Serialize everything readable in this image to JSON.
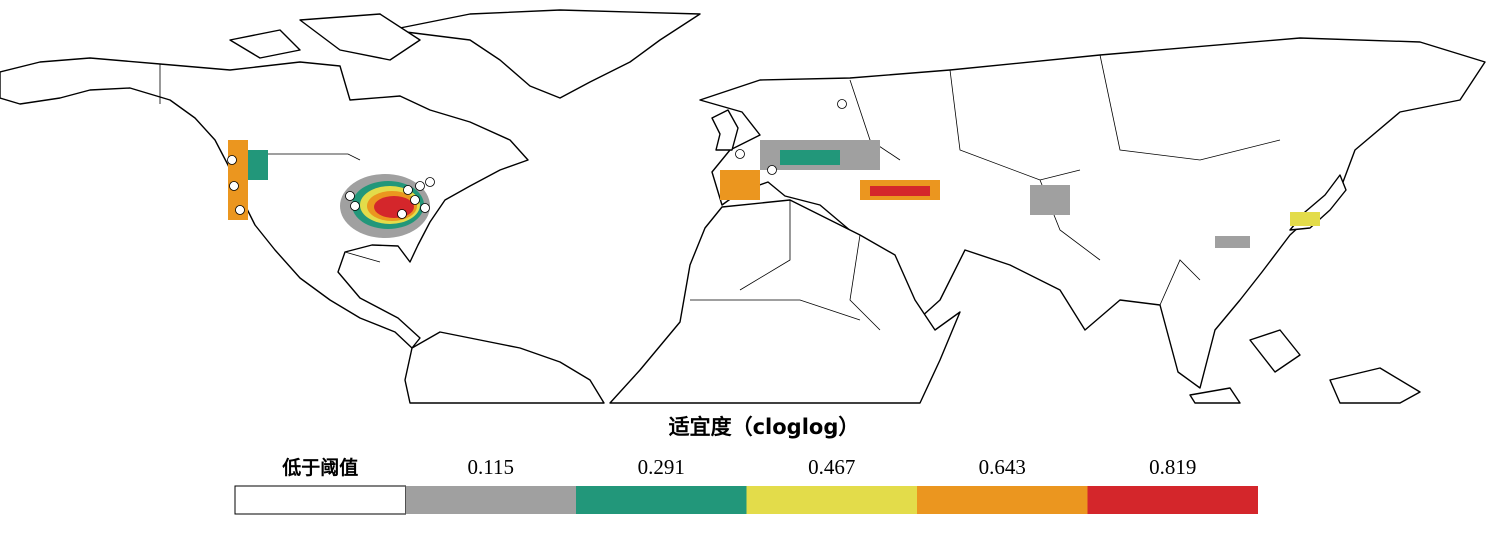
{
  "legend": {
    "title": "适宜度（cloglog）",
    "items": [
      {
        "label": "低于阈值",
        "color": "#ffffff"
      },
      {
        "label": 0.115,
        "color": "#a0a0a0"
      },
      {
        "label": 0.291,
        "color": "#22977a"
      },
      {
        "label": 0.467,
        "color": "#e3dc4a"
      },
      {
        "label": 0.643,
        "color": "#eb961f"
      },
      {
        "label": 0.819,
        "color": "#d4262b"
      }
    ]
  }
}
